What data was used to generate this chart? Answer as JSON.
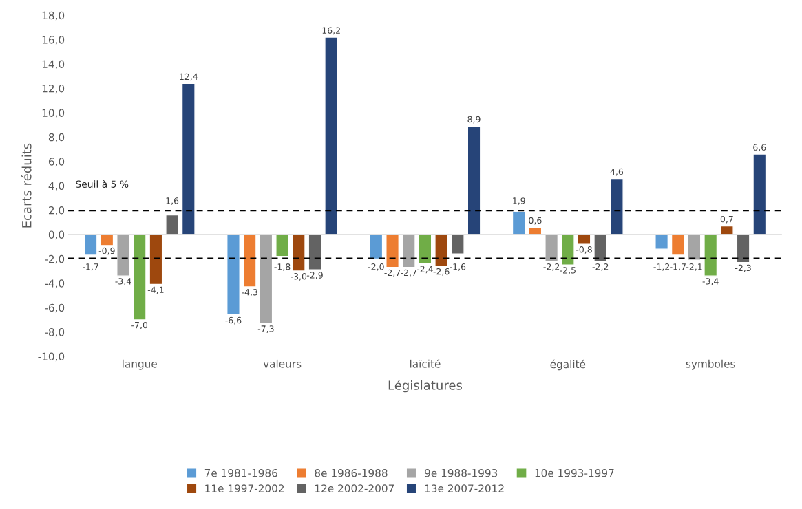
{
  "chart_data": {
    "type": "bar",
    "xlabel": "Législatures",
    "ylabel": "Ecarts réduits",
    "categories": [
      "langue",
      "valeurs",
      "laïcité",
      "égalité",
      "symboles"
    ],
    "series": [
      {
        "name": "7e 1981-1986",
        "color": "#5b9bd5",
        "values": [
          -1.7,
          -6.6,
          -2.0,
          1.9,
          -1.2
        ],
        "value_labels": [
          "-1,7",
          "-6,6",
          "-2,0",
          "1,9",
          "-1,2"
        ]
      },
      {
        "name": "8e 1986-1988",
        "color": "#ed7d31",
        "values": [
          -0.9,
          -4.3,
          -2.7,
          0.6,
          -1.7
        ],
        "value_labels": [
          "-0,9",
          "-4,3",
          "-2,7",
          "0,6",
          "-1,7"
        ]
      },
      {
        "name": "9e 1988-1993",
        "color": "#a5a5a5",
        "values": [
          -3.4,
          -7.3,
          -2.7,
          -2.2,
          -2.1
        ],
        "value_labels": [
          "-3,4",
          "-7,3",
          "-2,7",
          "-2,2",
          "-2,1"
        ]
      },
      {
        "name": "10e 1993-1997",
        "color": "#70ad47",
        "values": [
          -7.0,
          -1.8,
          -2.4,
          -2.5,
          -3.4
        ],
        "value_labels": [
          "-7,0",
          "-1,8",
          "-2,4",
          "-2,5",
          "-3,4"
        ]
      },
      {
        "name": "11e 1997-2002",
        "color": "#9e480e",
        "values": [
          -4.1,
          -3.0,
          -2.6,
          -0.8,
          0.7
        ],
        "value_labels": [
          "-4,1",
          "-3,0",
          "-2,6",
          "-0,8",
          "0,7"
        ]
      },
      {
        "name": "12e 2002-2007",
        "color": "#636363",
        "values": [
          1.6,
          -2.9,
          -1.6,
          -2.2,
          -2.3
        ],
        "value_labels": [
          "1,6",
          "-2,9",
          "-1,6",
          "-2,2",
          "-2,3"
        ]
      },
      {
        "name": "13e 2007-2012",
        "color": "#264478",
        "values": [
          12.4,
          16.2,
          8.9,
          4.6,
          6.6
        ],
        "value_labels": [
          "12,4",
          "16,2",
          "8,9",
          "4,6",
          "6,6"
        ]
      }
    ],
    "ylim": [
      -10,
      18
    ],
    "yticks": [
      {
        "value": -10,
        "label": "-10,0"
      },
      {
        "value": -8,
        "label": "-8,0"
      },
      {
        "value": -6,
        "label": "-6,0"
      },
      {
        "value": -4,
        "label": "-4,0"
      },
      {
        "value": -2,
        "label": "-2,0"
      },
      {
        "value": 0,
        "label": "0,0"
      },
      {
        "value": 2,
        "label": "2,0"
      },
      {
        "value": 4,
        "label": "4,0"
      },
      {
        "value": 6,
        "label": "6,0"
      },
      {
        "value": 8,
        "label": "8,0"
      },
      {
        "value": 10,
        "label": "10,0"
      },
      {
        "value": 12,
        "label": "12,0"
      },
      {
        "value": 14,
        "label": "14,0"
      },
      {
        "value": 16,
        "label": "16,0"
      },
      {
        "value": 18,
        "label": "18,0"
      }
    ],
    "ref_lines": [
      {
        "axis": "y",
        "value": 1.96,
        "label": "Seuil à 5 %",
        "color": "#000000",
        "line_style": "dashed"
      },
      {
        "axis": "y",
        "value": -1.96,
        "color": "#000000",
        "line_style": "dashed"
      }
    ],
    "grid": false,
    "legend": "bottom"
  }
}
